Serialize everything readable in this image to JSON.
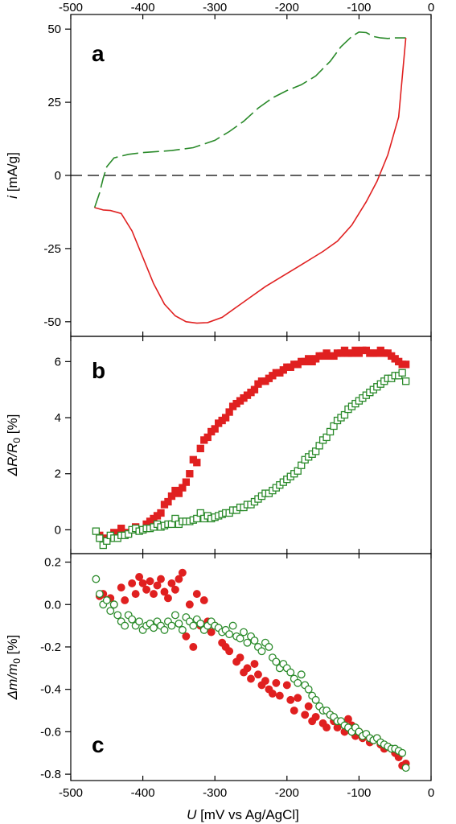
{
  "chart_data": [
    {
      "panel": "a",
      "type": "line",
      "ylabel": "i [mA/g]",
      "ylabel_parts": {
        "symbol": "i",
        "unit": " [mA/g]"
      },
      "xlim": [
        -500,
        0
      ],
      "ylim": [
        -55,
        55
      ],
      "yticks": [
        50,
        25,
        0,
        -25,
        -50
      ],
      "ytick_labels": [
        "50",
        "25",
        "0",
        "-25",
        "-50"
      ],
      "zero_line": "dashed",
      "series": [
        {
          "color": "#2a8a2a",
          "style": "dashed",
          "direction": "anodic",
          "x": [
            -467,
            -460,
            -455,
            -450,
            -440,
            -420,
            -400,
            -360,
            -330,
            -300,
            -280,
            -260,
            -240,
            -220,
            -200,
            -180,
            -160,
            -140,
            -125,
            -110,
            -100,
            -90,
            -80,
            -70,
            -60,
            -50,
            -40,
            -35
          ],
          "y": [
            -11,
            -6,
            -1,
            3,
            6,
            7.2,
            7.8,
            8.5,
            9.5,
            12,
            15,
            18.5,
            23,
            26.5,
            29,
            31,
            34,
            39,
            44,
            47.5,
            49,
            48.8,
            47.5,
            47,
            46.8,
            47,
            47,
            47
          ]
        },
        {
          "color": "#e02020",
          "style": "solid",
          "direction": "cathodic",
          "x": [
            -35,
            -45,
            -60,
            -75,
            -90,
            -110,
            -130,
            -150,
            -170,
            -190,
            -210,
            -230,
            -250,
            -270,
            -290,
            -310,
            -325,
            -340,
            -355,
            -370,
            -385,
            -400,
            -415,
            -430,
            -445,
            -455,
            -467
          ],
          "y": [
            47,
            20,
            7,
            -2,
            -9,
            -17,
            -22.5,
            -26,
            -29,
            -32,
            -35,
            -38,
            -41.5,
            -45,
            -48.5,
            -50.3,
            -50.5,
            -50,
            -48,
            -44,
            -37,
            -28,
            -19,
            -13,
            -12,
            -11.8,
            -11
          ]
        }
      ]
    },
    {
      "panel": "b",
      "type": "scatter",
      "ylabel": "ΔR/R0 [%]",
      "ylabel_parts": {
        "a": "ΔR/R",
        "sub": "0",
        "b": " [%]"
      },
      "xlim": [
        -500,
        0
      ],
      "ylim": [
        -0.85,
        6.9
      ],
      "yticks": [
        6,
        4,
        2,
        0
      ],
      "ytick_labels": [
        "6",
        "4",
        "2",
        "0"
      ],
      "series": [
        {
          "color": "#e02020",
          "marker": "square",
          "fill": "filled",
          "x": [
            -460,
            -450,
            -440,
            -430,
            -420,
            -410,
            -400,
            -395,
            -390,
            -385,
            -380,
            -375,
            -370,
            -365,
            -360,
            -355,
            -350,
            -345,
            -340,
            -335,
            -330,
            -325,
            -320,
            -315,
            -310,
            -305,
            -300,
            -295,
            -290,
            -285,
            -280,
            -275,
            -270,
            -265,
            -260,
            -255,
            -250,
            -245,
            -240,
            -235,
            -230,
            -225,
            -220,
            -215,
            -210,
            -205,
            -200,
            -195,
            -190,
            -185,
            -180,
            -175,
            -170,
            -165,
            -160,
            -155,
            -150,
            -145,
            -140,
            -135,
            -130,
            -125,
            -120,
            -115,
            -110,
            -105,
            -100,
            -95,
            -90,
            -85,
            -80,
            -75,
            -70,
            -65,
            -60,
            -55,
            -50,
            -45,
            -40,
            -35
          ],
          "y": [
            -0.2,
            -0.3,
            -0.1,
            0.05,
            -0.1,
            0.1,
            0.0,
            0.2,
            0.3,
            0.4,
            0.5,
            0.6,
            0.9,
            1.0,
            1.2,
            1.4,
            1.3,
            1.5,
            1.7,
            2.0,
            2.5,
            2.4,
            2.9,
            3.2,
            3.3,
            3.5,
            3.6,
            3.8,
            3.9,
            4.0,
            4.2,
            4.4,
            4.5,
            4.6,
            4.7,
            4.8,
            4.9,
            5.0,
            5.2,
            5.3,
            5.3,
            5.4,
            5.5,
            5.6,
            5.6,
            5.7,
            5.8,
            5.8,
            5.9,
            5.9,
            6.0,
            6.0,
            6.1,
            6.0,
            6.1,
            6.2,
            6.2,
            6.3,
            6.2,
            6.2,
            6.3,
            6.3,
            6.4,
            6.3,
            6.3,
            6.4,
            6.3,
            6.4,
            6.4,
            6.3,
            6.3,
            6.3,
            6.4,
            6.3,
            6.3,
            6.2,
            6.1,
            6.0,
            5.9,
            5.9
          ]
        },
        {
          "color": "#2a8a2a",
          "marker": "square",
          "fill": "open",
          "x": [
            -465,
            -460,
            -455,
            -450,
            -445,
            -440,
            -435,
            -430,
            -425,
            -420,
            -415,
            -410,
            -405,
            -400,
            -395,
            -390,
            -385,
            -380,
            -375,
            -370,
            -365,
            -360,
            -355,
            -350,
            -345,
            -340,
            -335,
            -330,
            -325,
            -320,
            -315,
            -310,
            -305,
            -300,
            -295,
            -290,
            -285,
            -280,
            -275,
            -270,
            -265,
            -260,
            -255,
            -250,
            -245,
            -240,
            -235,
            -230,
            -225,
            -220,
            -215,
            -210,
            -205,
            -200,
            -195,
            -190,
            -185,
            -180,
            -175,
            -170,
            -165,
            -160,
            -155,
            -150,
            -145,
            -140,
            -135,
            -130,
            -125,
            -120,
            -115,
            -110,
            -105,
            -100,
            -95,
            -90,
            -85,
            -80,
            -75,
            -70,
            -65,
            -60,
            -55,
            -50,
            -45,
            -40,
            -35
          ],
          "y": [
            -0.05,
            -0.3,
            -0.55,
            -0.4,
            -0.2,
            -0.3,
            -0.3,
            -0.2,
            -0.2,
            -0.15,
            0.0,
            0.05,
            -0.05,
            0.0,
            0.05,
            0.05,
            0.1,
            0.2,
            0.1,
            0.15,
            0.2,
            0.2,
            0.4,
            0.2,
            0.3,
            0.3,
            0.3,
            0.35,
            0.4,
            0.6,
            0.4,
            0.5,
            0.4,
            0.45,
            0.5,
            0.55,
            0.6,
            0.6,
            0.7,
            0.7,
            0.8,
            0.8,
            0.9,
            0.9,
            1.0,
            1.1,
            1.2,
            1.3,
            1.3,
            1.4,
            1.5,
            1.6,
            1.7,
            1.8,
            1.9,
            2.0,
            2.1,
            2.3,
            2.5,
            2.6,
            2.7,
            2.8,
            3.0,
            3.2,
            3.3,
            3.5,
            3.7,
            3.9,
            4.0,
            4.1,
            4.3,
            4.4,
            4.5,
            4.6,
            4.7,
            4.8,
            4.9,
            5.0,
            5.1,
            5.2,
            5.3,
            5.4,
            5.4,
            5.5,
            5.5,
            5.6,
            5.3
          ]
        }
      ]
    },
    {
      "panel": "c",
      "type": "scatter",
      "xlabel": "U [mV  vs  Ag/AgCl]",
      "xlabel_parts": {
        "symbol": "U",
        "unit": " [mV  vs  Ag/AgCl]"
      },
      "ylabel": "Δm/m0 [%]",
      "ylabel_parts": {
        "a": "Δm/m",
        "sub": "0",
        "b": " [%]"
      },
      "xlim": [
        -500,
        0
      ],
      "ylim": [
        -0.83,
        0.24
      ],
      "yticks": [
        0.2,
        0.0,
        -0.2,
        -0.4,
        -0.6,
        -0.8
      ],
      "ytick_labels": [
        "0.2",
        "0.0",
        "-0.2",
        "-0.4",
        "-0.6",
        "-0.8"
      ],
      "xticks": [
        -500,
        -400,
        -300,
        -200,
        -100,
        0
      ],
      "xtick_labels": [
        "-500",
        "-400",
        "-300",
        "-200",
        "-100",
        "0"
      ],
      "series": [
        {
          "color": "#e02020",
          "marker": "circle",
          "fill": "filled",
          "x": [
            -460,
            -455,
            -445,
            -440,
            -430,
            -425,
            -415,
            -410,
            -405,
            -400,
            -395,
            -390,
            -385,
            -380,
            -375,
            -370,
            -365,
            -360,
            -355,
            -350,
            -345,
            -340,
            -335,
            -330,
            -325,
            -320,
            -315,
            -310,
            -305,
            -300,
            -290,
            -285,
            -280,
            -270,
            -265,
            -260,
            -255,
            -250,
            -245,
            -240,
            -235,
            -230,
            -225,
            -220,
            -215,
            -210,
            -200,
            -195,
            -190,
            -185,
            -175,
            -170,
            -165,
            -160,
            -150,
            -145,
            -140,
            -135,
            -130,
            -120,
            -115,
            -110,
            -105,
            -100,
            -95,
            -90,
            -85,
            -80,
            -75,
            -70,
            -65,
            -60,
            -50,
            -45,
            -40,
            -35
          ],
          "y": [
            0.04,
            0.05,
            0.03,
            0.0,
            0.08,
            0.02,
            0.1,
            0.05,
            0.13,
            0.1,
            0.07,
            0.11,
            0.05,
            0.09,
            0.12,
            0.06,
            0.03,
            0.1,
            0.07,
            0.12,
            0.15,
            -0.15,
            0.0,
            -0.2,
            0.05,
            -0.1,
            0.02,
            -0.08,
            -0.13,
            -0.1,
            -0.18,
            -0.2,
            -0.22,
            -0.27,
            -0.25,
            -0.32,
            -0.3,
            -0.35,
            -0.28,
            -0.33,
            -0.38,
            -0.36,
            -0.4,
            -0.42,
            -0.37,
            -0.43,
            -0.38,
            -0.45,
            -0.5,
            -0.44,
            -0.52,
            -0.48,
            -0.55,
            -0.53,
            -0.56,
            -0.58,
            -0.52,
            -0.55,
            -0.58,
            -0.6,
            -0.54,
            -0.57,
            -0.62,
            -0.6,
            -0.63,
            -0.62,
            -0.65,
            -0.64,
            -0.63,
            -0.66,
            -0.68,
            -0.67,
            -0.7,
            -0.72,
            -0.76,
            -0.75
          ]
        },
        {
          "color": "#2a8a2a",
          "marker": "circle",
          "fill": "open",
          "x": [
            -465,
            -460,
            -455,
            -450,
            -445,
            -440,
            -435,
            -430,
            -425,
            -420,
            -415,
            -410,
            -405,
            -400,
            -395,
            -390,
            -385,
            -380,
            -375,
            -370,
            -365,
            -360,
            -355,
            -350,
            -345,
            -340,
            -335,
            -330,
            -325,
            -320,
            -315,
            -310,
            -305,
            -300,
            -295,
            -290,
            -285,
            -280,
            -275,
            -270,
            -265,
            -260,
            -255,
            -250,
            -245,
            -240,
            -235,
            -230,
            -225,
            -220,
            -215,
            -210,
            -205,
            -200,
            -195,
            -190,
            -185,
            -180,
            -175,
            -170,
            -165,
            -160,
            -155,
            -150,
            -145,
            -140,
            -135,
            -130,
            -125,
            -120,
            -115,
            -110,
            -105,
            -100,
            -95,
            -90,
            -85,
            -80,
            -75,
            -70,
            -65,
            -60,
            -55,
            -50,
            -45,
            -40,
            -35
          ],
          "y": [
            0.12,
            0.05,
            0.0,
            0.02,
            -0.03,
            0.0,
            -0.05,
            -0.08,
            -0.1,
            -0.05,
            -0.07,
            -0.1,
            -0.08,
            -0.12,
            -0.1,
            -0.09,
            -0.11,
            -0.08,
            -0.1,
            -0.12,
            -0.08,
            -0.1,
            -0.05,
            -0.09,
            -0.12,
            -0.06,
            -0.08,
            -0.1,
            -0.07,
            -0.09,
            -0.12,
            -0.1,
            -0.08,
            -0.1,
            -0.11,
            -0.13,
            -0.12,
            -0.14,
            -0.1,
            -0.15,
            -0.16,
            -0.13,
            -0.18,
            -0.15,
            -0.17,
            -0.2,
            -0.22,
            -0.18,
            -0.2,
            -0.25,
            -0.27,
            -0.3,
            -0.28,
            -0.3,
            -0.32,
            -0.35,
            -0.37,
            -0.33,
            -0.38,
            -0.4,
            -0.43,
            -0.45,
            -0.48,
            -0.5,
            -0.5,
            -0.52,
            -0.53,
            -0.55,
            -0.55,
            -0.57,
            -0.58,
            -0.6,
            -0.58,
            -0.6,
            -0.62,
            -0.61,
            -0.63,
            -0.64,
            -0.63,
            -0.65,
            -0.66,
            -0.67,
            -0.68,
            -0.68,
            -0.69,
            -0.7,
            -0.77
          ]
        }
      ]
    }
  ],
  "top_axis": {
    "xticks": [
      -500,
      -400,
      -300,
      -200,
      -100,
      0
    ],
    "xtick_labels": [
      "-500",
      "-400",
      "-300",
      "-200",
      "-100",
      "0"
    ]
  },
  "panel_letters": [
    "a",
    "b",
    "c"
  ]
}
